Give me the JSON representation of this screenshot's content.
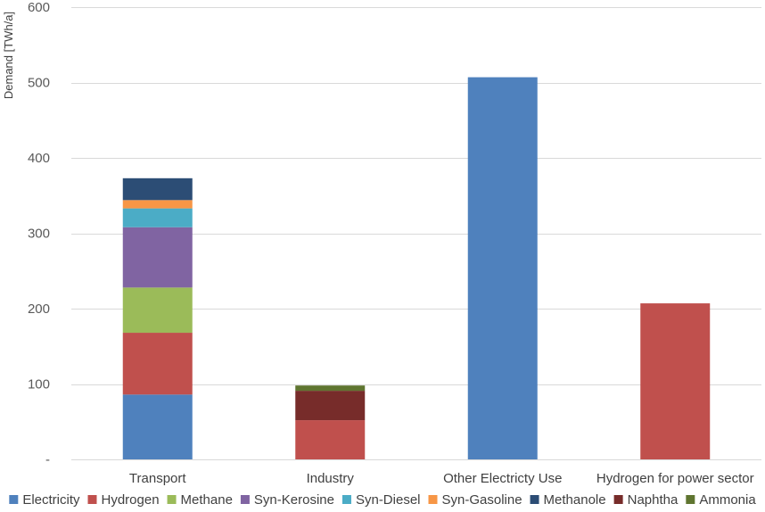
{
  "chart_data": {
    "type": "bar",
    "stacked": true,
    "ylabel": "Demand [TWh/a]",
    "ylim": [
      0,
      600
    ],
    "yticks": [
      0,
      100,
      200,
      300,
      400,
      500,
      600
    ],
    "ytick_labels": [
      "-",
      "100",
      "200",
      "300",
      "400",
      "500",
      "600"
    ],
    "grid": true,
    "legend_position": "bottom",
    "categories": [
      "Transport",
      "Industry",
      "Other Electricty Use",
      "Hydrogen for power sector"
    ],
    "series": [
      {
        "name": "Electricity",
        "color": "#4f81bd",
        "values": [
          86,
          0,
          507,
          0
        ]
      },
      {
        "name": "Hydrogen",
        "color": "#c0504d",
        "values": [
          82,
          52,
          0,
          207
        ]
      },
      {
        "name": "Methane",
        "color": "#9bbb59",
        "values": [
          60,
          0,
          0,
          0
        ]
      },
      {
        "name": "Syn-Kerosine",
        "color": "#8064a2",
        "values": [
          80,
          0,
          0,
          0
        ]
      },
      {
        "name": "Syn-Diesel",
        "color": "#4bacc6",
        "values": [
          25,
          0,
          0,
          0
        ]
      },
      {
        "name": "Syn-Gasoline",
        "color": "#f79646",
        "values": [
          11,
          0,
          0,
          0
        ]
      },
      {
        "name": "Methanole",
        "color": "#2c4d75",
        "values": [
          29,
          0,
          0,
          0
        ]
      },
      {
        "name": "Naphtha",
        "color": "#772c2a",
        "values": [
          0,
          39,
          0,
          0
        ]
      },
      {
        "name": "Ammonia",
        "color": "#5f7530",
        "values": [
          0,
          7,
          0,
          0
        ]
      }
    ]
  }
}
